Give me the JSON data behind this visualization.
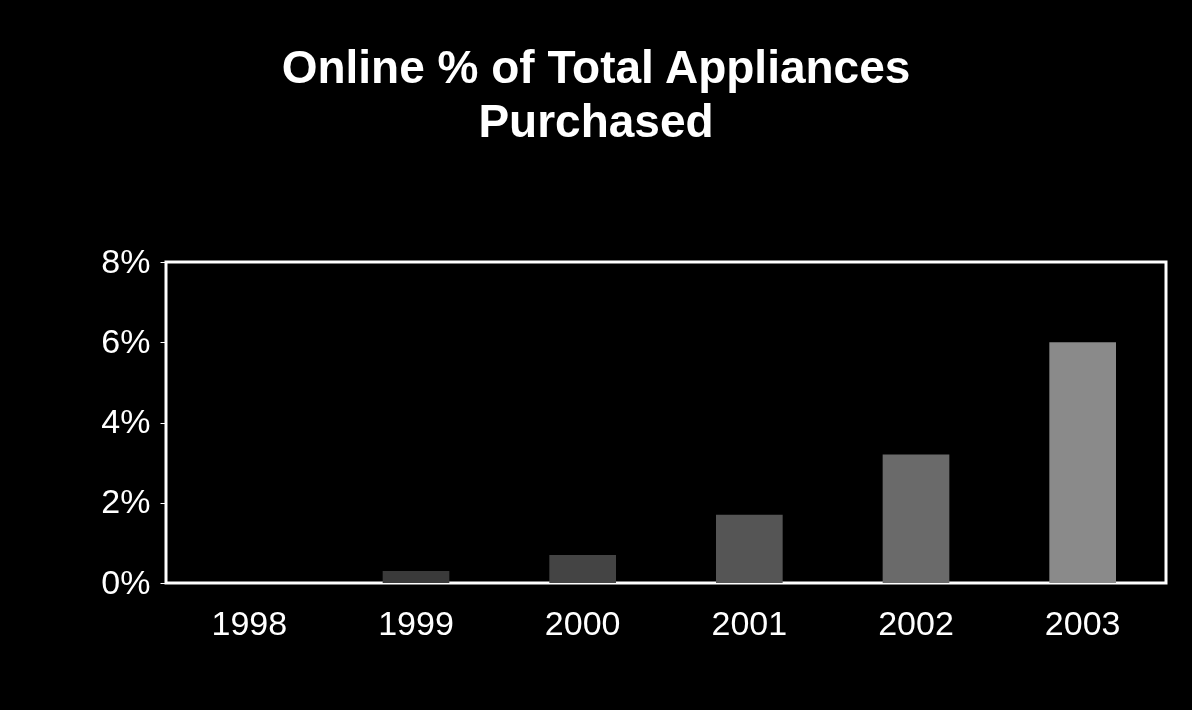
{
  "chart_data": {
    "type": "bar",
    "title": "Online % of Total Appliances Purchased",
    "categories": [
      "1998",
      "1999",
      "2000",
      "2001",
      "2002",
      "2003"
    ],
    "values": [
      0,
      0.3,
      0.7,
      1.7,
      3.2,
      6.0
    ],
    "colors": [
      "#333333",
      "#3a3a3a",
      "#444444",
      "#555555",
      "#6a6a6a",
      "#8a8a8a"
    ],
    "ylim": [
      0,
      8
    ],
    "yticks": [
      {
        "value": 0,
        "label": "0%"
      },
      {
        "value": 2,
        "label": "2%"
      },
      {
        "value": 4,
        "label": "4%"
      },
      {
        "value": 6,
        "label": "6%"
      },
      {
        "value": 8,
        "label": "8%"
      }
    ],
    "grid": false
  }
}
